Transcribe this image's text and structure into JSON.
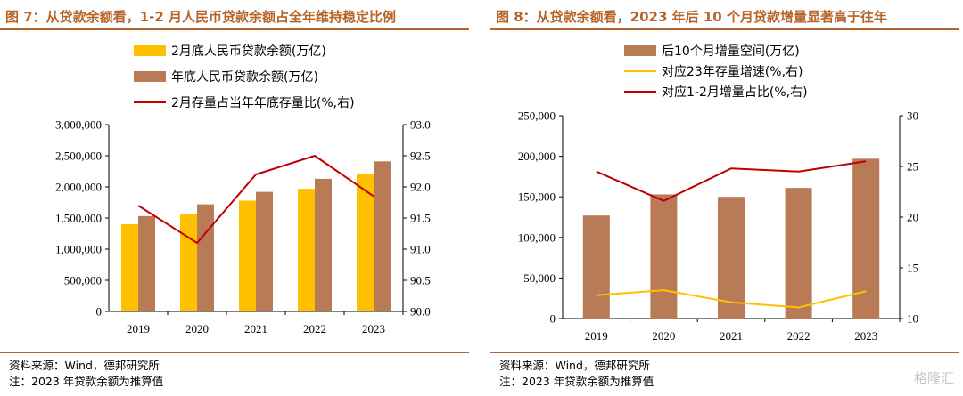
{
  "colors": {
    "accent": "#b5652a",
    "bar_yellow": "#ffc000",
    "bar_brown": "#b97a56",
    "line_red": "#c00000",
    "line_yellow": "#ffc000"
  },
  "left": {
    "title": "图 7：从贷款余额看，1-2 月人民币贷款余额占全年维持稳定比例",
    "source": "资料来源：Wind，德邦研究所",
    "note": "注：2023 年贷款余额为推算值"
  },
  "right": {
    "title": "图 8：从贷款余额看，2023 年后 10 个月贷款增量显著高于往年",
    "source": "资料来源：Wind，德邦研究所",
    "note": "注：2023 年贷款余额为推算值"
  },
  "watermark": "格隆汇",
  "chart_data": [
    {
      "type": "bar",
      "categories": [
        "2019",
        "2020",
        "2021",
        "2022",
        "2023"
      ],
      "series": [
        {
          "name": "2月底人民币贷款余额(万亿)",
          "kind": "bar",
          "axis": "left",
          "color": "#ffc000",
          "values": [
            1400000,
            1570000,
            1780000,
            1970000,
            2210000
          ]
        },
        {
          "name": "年底人民币贷款余额(万亿)",
          "kind": "bar",
          "axis": "left",
          "color": "#b97a56",
          "values": [
            1530000,
            1720000,
            1920000,
            2130000,
            2410000
          ]
        },
        {
          "name": "2月存量占当年年底存量比(%,右)",
          "kind": "line",
          "axis": "right",
          "color": "#c00000",
          "values": [
            91.7,
            91.1,
            92.2,
            92.5,
            91.85
          ]
        }
      ],
      "yleft": {
        "ticks": [
          "0",
          "500,000",
          "1,000,000",
          "1,500,000",
          "2,000,000",
          "2,500,000",
          "3,000,000"
        ],
        "lim": [
          0,
          3000000
        ]
      },
      "yright": {
        "ticks": [
          "90.0",
          "90.5",
          "91.0",
          "91.5",
          "92.0",
          "92.5",
          "93.0"
        ],
        "lim": [
          90.0,
          93.0
        ]
      },
      "grid": false,
      "legend_position": "top"
    },
    {
      "type": "bar",
      "categories": [
        "2019",
        "2020",
        "2021",
        "2022",
        "2023"
      ],
      "series": [
        {
          "name": "后10个月增量空间(万亿)",
          "kind": "bar",
          "axis": "left",
          "color": "#b97a56",
          "values": [
            127000,
            153000,
            150000,
            161000,
            197000
          ]
        },
        {
          "name": "对应23年存量增速(%,右)",
          "kind": "line",
          "axis": "right",
          "color": "#ffc000",
          "values": [
            12.3,
            12.8,
            11.6,
            11.1,
            12.7
          ]
        },
        {
          "name": "对应1-2月增量占比(%,右)",
          "kind": "line",
          "axis": "right",
          "color": "#c00000",
          "values": [
            24.5,
            21.6,
            24.8,
            24.5,
            25.5
          ]
        }
      ],
      "yleft": {
        "ticks": [
          "0",
          "50,000",
          "100,000",
          "150,000",
          "200,000",
          "250,000"
        ],
        "lim": [
          0,
          250000
        ]
      },
      "yright": {
        "ticks": [
          "10",
          "15",
          "20",
          "25",
          "30"
        ],
        "lim": [
          10,
          30
        ]
      },
      "grid": false,
      "legend_position": "top"
    }
  ]
}
